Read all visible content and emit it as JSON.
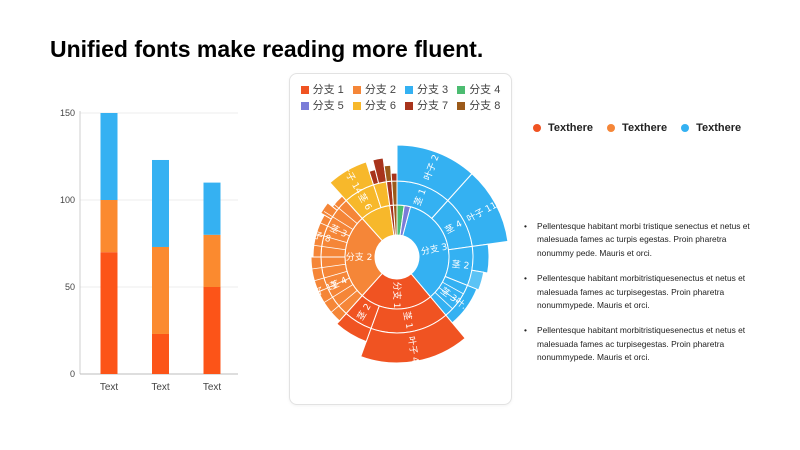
{
  "slide": {
    "title": "Unified fonts make reading more fluent."
  },
  "bar_chart": {
    "chart_data": {
      "type": "bar",
      "stacked": true,
      "categories": [
        "Text",
        "Text",
        "Text"
      ],
      "series": [
        {
          "values": [
            70,
            23,
            50
          ],
          "color": "#fc5418"
        },
        {
          "values": [
            30,
            50,
            30
          ],
          "color": "#fb8a2f"
        },
        {
          "values": [
            50,
            50,
            30
          ],
          "color": "#35b1f2"
        }
      ],
      "ylim": [
        0,
        150
      ],
      "yticks": [
        0,
        50,
        100,
        150
      ],
      "grid": true
    }
  },
  "sunburst": {
    "legend": [
      {
        "label": "分支 1",
        "color": "#f05322"
      },
      {
        "label": "分支 2",
        "color": "#f58638"
      },
      {
        "label": "分支 3",
        "color": "#34b1f2"
      },
      {
        "label": "分支 4",
        "color": "#4cbc71"
      },
      {
        "label": "分支 5",
        "color": "#7a7cd8"
      },
      {
        "label": "分支 6",
        "color": "#f7b82b"
      },
      {
        "label": "分支 7",
        "color": "#a8341c"
      },
      {
        "label": "分支 8",
        "color": "#9b5a1a"
      }
    ],
    "inner_labels": [
      "分支 3",
      "分支 2",
      "分支 1"
    ],
    "middle_labels": [
      "茎 1",
      "茎 4",
      "茎 2",
      "茎 3",
      "茎 1",
      "茎 2",
      "茎 4",
      "茎 3",
      "茎 6"
    ],
    "outer_labels": [
      "叶子 2",
      "叶子 11",
      "叶子 4",
      "叶子 11",
      "叶子 8",
      "叶子 14",
      "叶..."
    ]
  },
  "legend_dots": [
    {
      "label": "Texthere",
      "color": "#f05322"
    },
    {
      "label": "Texthere",
      "color": "#f58638"
    },
    {
      "label": "Texthere",
      "color": "#34b1f2"
    }
  ],
  "bullets": [
    "Pellentesque habitant morbi tristique senectus et netus et malesuada fames ac turpis egestas. Proin pharetra nonummy pede. Mauris et orci.",
    "Pellentesque habitant morbitristiquesenectus et netus et malesuada fames ac turpisegestas. Proin pharetra nonummypede. Mauris et orci.",
    "Pellentesque habitant morbitristiquesenectus et netus et malesuada fames ac turpisegestas. Proin pharetra nonummypede. Mauris et orci."
  ]
}
